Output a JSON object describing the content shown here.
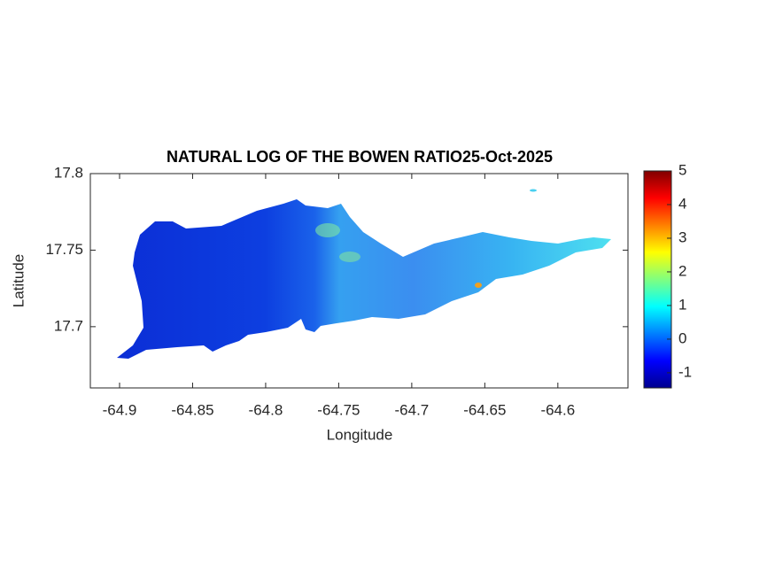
{
  "chart_data": {
    "type": "map",
    "title": "NATURAL LOG OF THE BOWEN RATIO25-Oct-2025",
    "x_label": "Longitude",
    "y_label": "Latitude",
    "xlim": [
      -64.92,
      -64.552
    ],
    "xticks": [
      -64.9,
      -64.85,
      -64.8,
      -64.75,
      -64.7,
      -64.65,
      -64.6
    ],
    "ylim": [
      17.66,
      17.8
    ],
    "yticks": [
      17.7,
      17.75,
      17.8
    ],
    "colorbar": {
      "lim": [
        -1.45,
        5
      ],
      "ticks": [
        -1,
        0,
        1,
        2,
        3,
        4,
        5
      ],
      "colormap": "jet"
    }
  }
}
